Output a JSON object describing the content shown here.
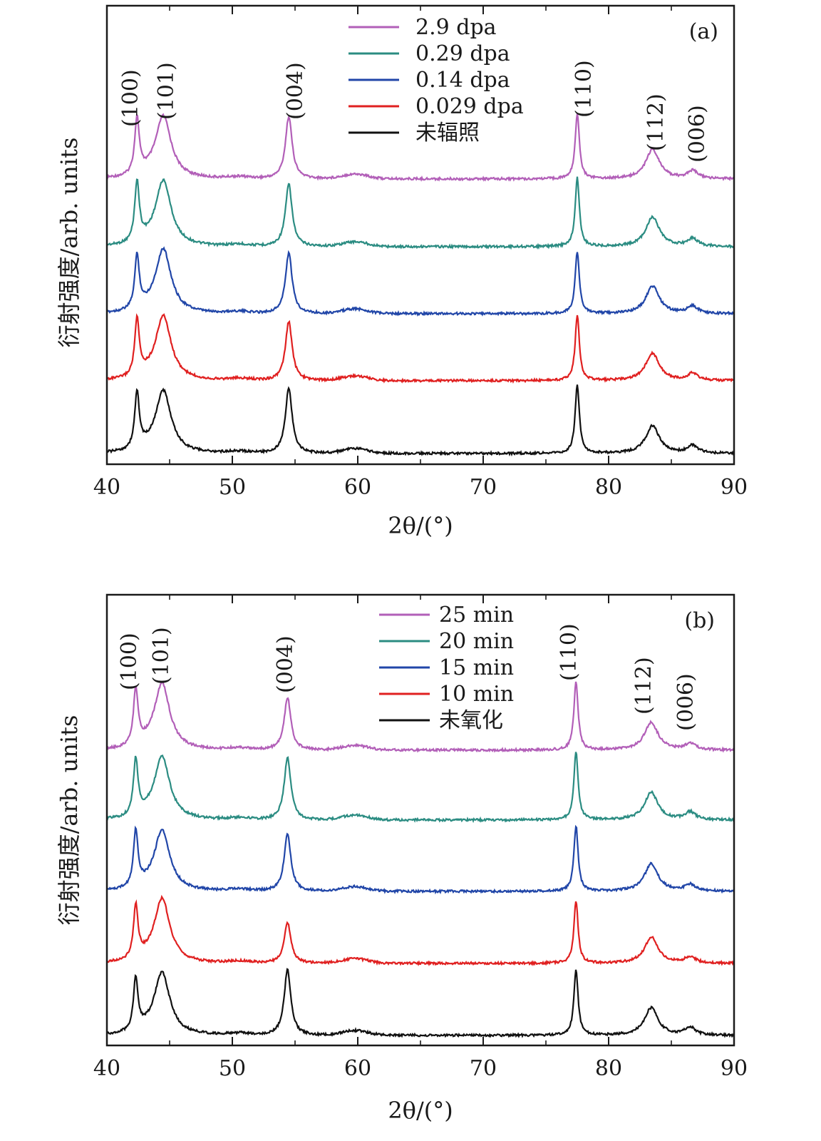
{
  "chart_data": [
    {
      "type": "line",
      "panel_label": "(a)",
      "xlabel": "2θ/(°)",
      "ylabel": "衍射强度/arb. units",
      "xlim": [
        40,
        90
      ],
      "xticks": [
        40,
        50,
        60,
        70,
        80,
        90
      ],
      "yticks_visible": false,
      "legend_placement": "top",
      "peaks": [
        {
          "label": "(100)",
          "two_theta": 42.4
        },
        {
          "label": "(101)",
          "two_theta": 44.5
        },
        {
          "label": "(004)",
          "two_theta": 54.5
        },
        {
          "label": "(110)",
          "two_theta": 77.5
        },
        {
          "label": "(112)",
          "two_theta": 83.5
        },
        {
          "label": "(006)",
          "two_theta": 86.7
        }
      ],
      "series": [
        {
          "name": "2.9 dpa",
          "color": "#b25fb8",
          "offset": 4,
          "peak_heights": [
            0.85,
            0.95,
            0.95,
            1.0,
            0.45,
            0.12
          ]
        },
        {
          "name": "0.29 dpa",
          "color": "#2b8c82",
          "offset": 3,
          "peak_heights": [
            0.9,
            1.0,
            0.95,
            1.05,
            0.45,
            0.12
          ]
        },
        {
          "name": "0.14 dpa",
          "color": "#2146a8",
          "offset": 2,
          "peak_heights": [
            0.8,
            0.98,
            0.92,
            0.95,
            0.42,
            0.11
          ]
        },
        {
          "name": "0.029 dpa",
          "color": "#e02020",
          "offset": 1,
          "peak_heights": [
            0.85,
            0.98,
            0.9,
            1.0,
            0.42,
            0.11
          ]
        },
        {
          "name": "未辐照",
          "color": "#111111",
          "offset": 0,
          "peak_heights": [
            0.85,
            0.95,
            1.0,
            1.05,
            0.42,
            0.12
          ]
        }
      ]
    },
    {
      "type": "line",
      "panel_label": "(b)",
      "xlabel": "2θ/(°)",
      "ylabel": "衍射强度/arb. units",
      "xlim": [
        40,
        90
      ],
      "xticks": [
        40,
        50,
        60,
        70,
        80,
        90
      ],
      "yticks_visible": false,
      "legend_placement": "top",
      "peaks": [
        {
          "label": "(100)",
          "two_theta": 42.3
        },
        {
          "label": "(101)",
          "two_theta": 44.4
        },
        {
          "label": "(004)",
          "two_theta": 54.4
        },
        {
          "label": "(110)",
          "two_theta": 77.4
        },
        {
          "label": "(112)",
          "two_theta": 83.4
        },
        {
          "label": "(006)",
          "two_theta": 86.5
        }
      ],
      "series": [
        {
          "name": "25 min",
          "color": "#b25fb8",
          "offset": 4,
          "peak_heights": [
            0.85,
            1.0,
            0.8,
            1.05,
            0.42,
            0.1
          ]
        },
        {
          "name": "20 min",
          "color": "#2b8c82",
          "offset": 3,
          "peak_heights": [
            0.85,
            0.95,
            0.95,
            1.05,
            0.42,
            0.12
          ]
        },
        {
          "name": "15 min",
          "color": "#2146a8",
          "offset": 2,
          "peak_heights": [
            0.85,
            0.92,
            0.88,
            1.0,
            0.42,
            0.1
          ]
        },
        {
          "name": "10 min",
          "color": "#e02020",
          "offset": 1,
          "peak_heights": [
            0.8,
            0.98,
            0.62,
            0.95,
            0.4,
            0.1
          ]
        },
        {
          "name": "未氧化",
          "color": "#111111",
          "offset": 0,
          "peak_heights": [
            0.8,
            0.95,
            1.0,
            1.0,
            0.42,
            0.12
          ]
        }
      ]
    }
  ]
}
